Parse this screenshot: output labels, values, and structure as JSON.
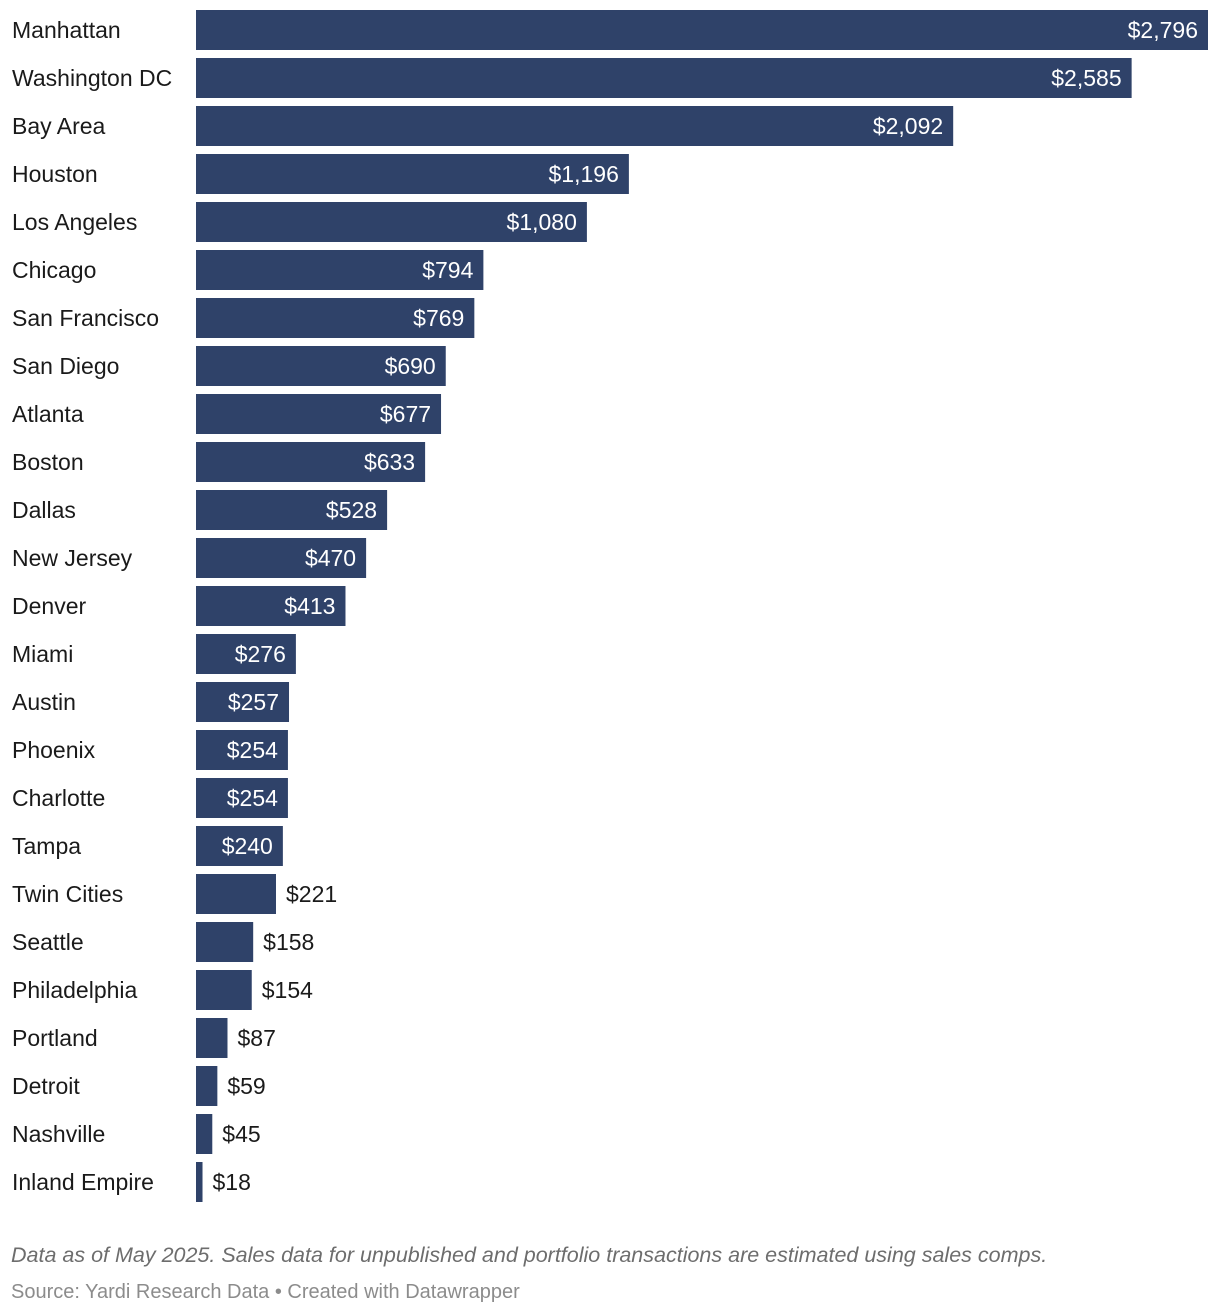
{
  "chart_data": {
    "type": "bar",
    "orientation": "horizontal",
    "categories": [
      "Manhattan",
      "Washington DC",
      "Bay Area",
      "Houston",
      "Los Angeles",
      "Chicago",
      "San Francisco",
      "San Diego",
      "Atlanta",
      "Boston",
      "Dallas",
      "New Jersey",
      "Denver",
      "Miami",
      "Austin",
      "Phoenix",
      "Charlotte",
      "Tampa",
      "Twin Cities",
      "Seattle",
      "Philadelphia",
      "Portland",
      "Detroit",
      "Nashville",
      "Inland Empire"
    ],
    "values": [
      2796,
      2585,
      2092,
      1196,
      1080,
      794,
      769,
      690,
      677,
      633,
      528,
      470,
      413,
      276,
      257,
      254,
      254,
      240,
      221,
      158,
      154,
      87,
      59,
      45,
      18
    ],
    "value_labels": [
      "$2,796",
      "$2,585",
      "$2,092",
      "$1,196",
      "$1,080",
      "$794",
      "$769",
      "$690",
      "$677",
      "$633",
      "$528",
      "$470",
      "$413",
      "$276",
      "$257",
      "$254",
      "$254",
      "$240",
      "$221",
      "$158",
      "$154",
      "$87",
      "$59",
      "$45",
      "$18"
    ],
    "xlim": [
      0,
      2796
    ],
    "title": "",
    "xlabel": "",
    "ylabel": "",
    "grid": false,
    "bar_color": "#2f4269"
  },
  "footer": {
    "note": "Data as of May 2025. Sales data for unpublished and portfolio transactions are estimated using sales comps.",
    "source": "Source: Yardi Research Data • Created with Datawrapper"
  }
}
